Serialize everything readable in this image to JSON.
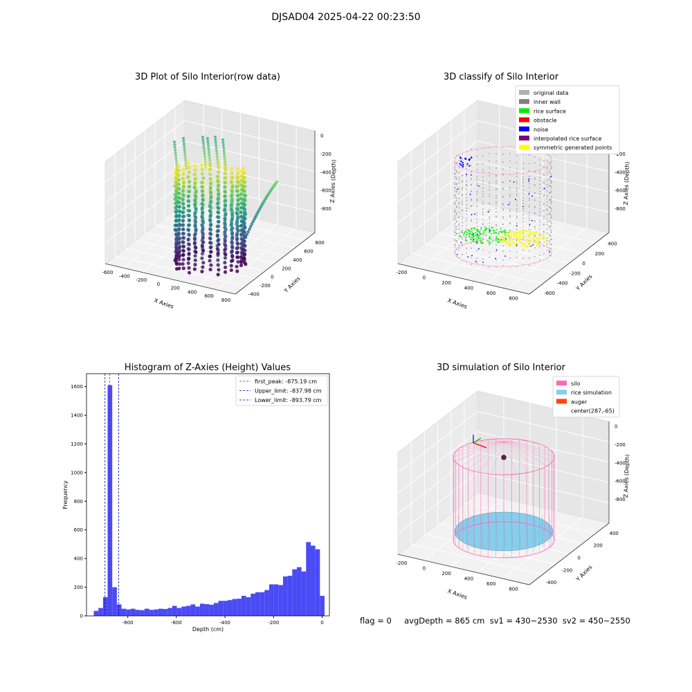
{
  "suptitle": "DJSAD04 2025-04-22 00:23:50",
  "footer": "flag = 0     avgDepth = 865 cm  sv1 = 430~2530  sv2 = 450~2550",
  "chart_data": [
    {
      "type": "scatter",
      "title": "3D Plot of Silo Interior(row data)",
      "xlabel": "X Axies",
      "ylabel": "Y Axies",
      "zlabel": "Z Axies (Depth)",
      "x_ticks": [
        "-600",
        "-400",
        "-200",
        "0",
        "200",
        "400",
        "600",
        "800"
      ],
      "y_ticks": [
        "-400",
        "-200",
        "0",
        "200",
        "400",
        "600",
        "800"
      ],
      "z_ticks": [
        "0",
        "-200",
        "-400",
        "-600",
        "-800"
      ],
      "xlim": [
        -700,
        900
      ],
      "ylim": [
        -450,
        850
      ],
      "zlim": [
        -950,
        50
      ],
      "colormap": "viridis",
      "colors": {
        "low": "#440154",
        "mid": "#21918c",
        "high": "#fde725"
      }
    },
    {
      "type": "scatter",
      "title": "3D classify of Silo Interior",
      "xlabel": "X Axies",
      "ylabel": "Y Axies",
      "zlabel": "Z Axies (Depth)",
      "x_ticks": [
        "-200",
        "0",
        "200",
        "400",
        "600",
        "800"
      ],
      "y_ticks": [
        "-600",
        "-400",
        "-200",
        "0",
        "200",
        "400"
      ],
      "z_ticks": [
        "0",
        "-200",
        "-400",
        "-600",
        "-800"
      ],
      "legend_position": "top-right",
      "legend": [
        {
          "label": "original data",
          "color": "#b0b0b0"
        },
        {
          "label": "inner wall",
          "color": "#808080"
        },
        {
          "label": "rice surface",
          "color": "#00ee00"
        },
        {
          "label": "obstacle",
          "color": "#ff0000"
        },
        {
          "label": "noise",
          "color": "#0000ff"
        },
        {
          "label": "interpolated rice surface",
          "color": "#800080"
        },
        {
          "label": "symmetric generated points",
          "color": "#ffff00"
        }
      ]
    },
    {
      "type": "bar",
      "title": "Histogram of Z-Axies (Height) Values",
      "xlabel": "Depth (cm)",
      "ylabel": "Frequency",
      "xlim": [
        -970,
        30
      ],
      "ylim": [
        0,
        1690
      ],
      "x_ticks": [
        -800,
        -600,
        -400,
        -200,
        0
      ],
      "y_ticks": [
        0,
        200,
        400,
        600,
        800,
        1000,
        1200,
        1400,
        1600
      ],
      "bin_width": 19,
      "bins": [
        {
          "x0": -940,
          "count": 35
        },
        {
          "x0": -921,
          "count": 55
        },
        {
          "x0": -902,
          "count": 130
        },
        {
          "x0": -883,
          "count": 1610
        },
        {
          "x0": -864,
          "count": 200
        },
        {
          "x0": -845,
          "count": 80
        },
        {
          "x0": -826,
          "count": 50
        },
        {
          "x0": -807,
          "count": 45
        },
        {
          "x0": -788,
          "count": 50
        },
        {
          "x0": -769,
          "count": 42
        },
        {
          "x0": -750,
          "count": 40
        },
        {
          "x0": -731,
          "count": 50
        },
        {
          "x0": -712,
          "count": 42
        },
        {
          "x0": -693,
          "count": 45
        },
        {
          "x0": -674,
          "count": 50
        },
        {
          "x0": -655,
          "count": 48
        },
        {
          "x0": -636,
          "count": 55
        },
        {
          "x0": -617,
          "count": 70
        },
        {
          "x0": -598,
          "count": 55
        },
        {
          "x0": -579,
          "count": 65
        },
        {
          "x0": -560,
          "count": 70
        },
        {
          "x0": -541,
          "count": 80
        },
        {
          "x0": -522,
          "count": 65
        },
        {
          "x0": -503,
          "count": 85
        },
        {
          "x0": -484,
          "count": 82
        },
        {
          "x0": -465,
          "count": 78
        },
        {
          "x0": -446,
          "count": 90
        },
        {
          "x0": -427,
          "count": 105
        },
        {
          "x0": -408,
          "count": 105
        },
        {
          "x0": -389,
          "count": 110
        },
        {
          "x0": -370,
          "count": 118
        },
        {
          "x0": -351,
          "count": 120
        },
        {
          "x0": -332,
          "count": 140
        },
        {
          "x0": -313,
          "count": 130
        },
        {
          "x0": -294,
          "count": 155
        },
        {
          "x0": -275,
          "count": 165
        },
        {
          "x0": -256,
          "count": 165
        },
        {
          "x0": -237,
          "count": 180
        },
        {
          "x0": -218,
          "count": 220
        },
        {
          "x0": -199,
          "count": 220
        },
        {
          "x0": -180,
          "count": 215
        },
        {
          "x0": -161,
          "count": 275
        },
        {
          "x0": -142,
          "count": 280
        },
        {
          "x0": -123,
          "count": 325
        },
        {
          "x0": -104,
          "count": 340
        },
        {
          "x0": -85,
          "count": 310
        },
        {
          "x0": -66,
          "count": 515
        },
        {
          "x0": -47,
          "count": 490
        },
        {
          "x0": -28,
          "count": 465
        },
        {
          "x0": -9,
          "count": 140
        }
      ],
      "bar_color": "#4b4bf5",
      "vlines": [
        {
          "x": -875.19,
          "color": "#ff0000",
          "label": "first_peak: -875.19 cm"
        },
        {
          "x": -837.98,
          "color": "#0000aa",
          "label": "Upper_limit: -837.98 cm"
        },
        {
          "x": -893.79,
          "color": "#0000aa",
          "label": "Lower_limit: -893.79 cm"
        }
      ],
      "legend_position": "top-right"
    },
    {
      "type": "scatter",
      "title": "3D simulation of Silo Interior",
      "xlabel": "X Axies",
      "ylabel": "Y Axies",
      "zlabel": "Z Axies (Depth)",
      "x_ticks": [
        "-200",
        "0",
        "200",
        "400",
        "600",
        "800"
      ],
      "y_ticks": [
        "-400",
        "-200",
        "0",
        "200",
        "400"
      ],
      "z_ticks": [
        "0",
        "-200",
        "-400",
        "-600",
        "-800"
      ],
      "legend_position": "top-right",
      "legend": [
        {
          "label": "silo",
          "color": "#ff69b4"
        },
        {
          "label": "rice simulation",
          "color": "#87ceeb"
        },
        {
          "label": "auger",
          "color": "#ff4500"
        },
        {
          "label": "center(287,-65)",
          "color": ""
        }
      ]
    }
  ]
}
